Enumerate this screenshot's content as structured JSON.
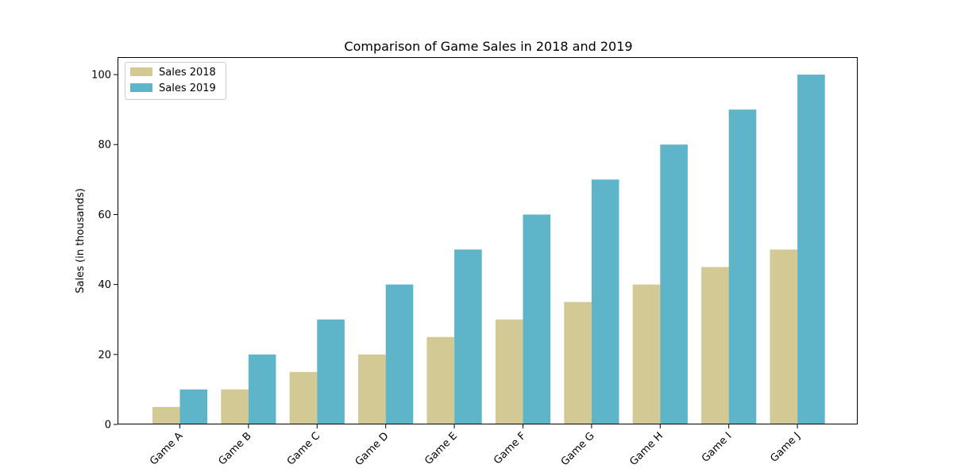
{
  "chart_data": {
    "type": "bar",
    "title": "Comparison of Game Sales in 2018 and 2019",
    "xlabel": "",
    "ylabel": "Sales (in thousands)",
    "categories": [
      "Game A",
      "Game B",
      "Game C",
      "Game D",
      "Game E",
      "Game F",
      "Game G",
      "Game H",
      "Game I",
      "Game J"
    ],
    "series": [
      {
        "name": "Sales 2018",
        "color": "#d2c994",
        "values": [
          5,
          10,
          15,
          20,
          25,
          30,
          35,
          40,
          45,
          50
        ]
      },
      {
        "name": "Sales 2019",
        "color": "#5eb4c8",
        "values": [
          10,
          20,
          30,
          40,
          50,
          60,
          70,
          80,
          90,
          100
        ]
      }
    ],
    "ylim": [
      0,
      105
    ],
    "yticks": [
      0,
      20,
      40,
      60,
      80,
      100
    ],
    "grid": false,
    "legend_position": "top-left",
    "xtick_rotation": "45 degrees"
  }
}
